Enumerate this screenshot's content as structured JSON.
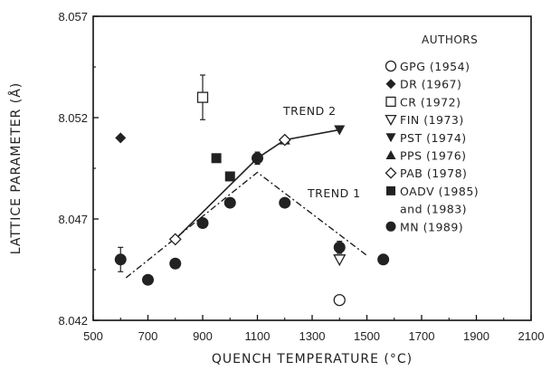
{
  "chart_data": {
    "type": "scatter",
    "xlabel": "QUENCH TEMPERATURE (°C)",
    "ylabel": "LATTICE PARAMETER (Å)",
    "xlim": [
      500,
      2100
    ],
    "ylim": [
      8.042,
      8.057
    ],
    "x_ticks": [
      500,
      700,
      900,
      1100,
      1300,
      1500,
      1700,
      1900,
      2100
    ],
    "y_ticks": [
      8.042,
      8.047,
      8.052,
      8.057
    ],
    "y_tick_labels": [
      "8.042",
      "8.047",
      "8.052",
      "8.057"
    ],
    "grid": false,
    "legend_title": "AUTHORS",
    "legend_position": "right",
    "series": [
      {
        "name": "GPG (1954)",
        "marker": "circle-open",
        "points": [
          {
            "x": 1400,
            "y": 8.043
          }
        ]
      },
      {
        "name": "DR (1967)",
        "marker": "diamond-filled",
        "points": [
          {
            "x": 600,
            "y": 8.051
          }
        ]
      },
      {
        "name": "CR (1972)",
        "marker": "square-open",
        "points": [
          {
            "x": 900,
            "y": 8.053,
            "err": 0.0011
          }
        ]
      },
      {
        "name": "FIN (1973)",
        "marker": "triangle-down-open",
        "points": [
          {
            "x": 1400,
            "y": 8.045
          }
        ]
      },
      {
        "name": "PST (1974)",
        "marker": "triangle-down-filled",
        "points": [
          {
            "x": 1400,
            "y": 8.0514
          }
        ]
      },
      {
        "name": "PPS (1976)",
        "marker": "triangle-up-filled",
        "points": [
          {
            "x": 1200,
            "y": 8.0509
          }
        ]
      },
      {
        "name": "PAB (1978)",
        "marker": "diamond-open",
        "points": [
          {
            "x": 800,
            "y": 8.046
          },
          {
            "x": 1200,
            "y": 8.0509
          }
        ]
      },
      {
        "name": "OADV (1985) and (1983)",
        "marker": "square-filled",
        "points": [
          {
            "x": 950,
            "y": 8.05
          },
          {
            "x": 1000,
            "y": 8.0491
          }
        ]
      },
      {
        "name": "MN (1989)",
        "marker": "circle-filled",
        "points": [
          {
            "x": 600,
            "y": 8.045,
            "err": 0.0006
          },
          {
            "x": 700,
            "y": 8.044
          },
          {
            "x": 800,
            "y": 8.0448
          },
          {
            "x": 900,
            "y": 8.0468
          },
          {
            "x": 1000,
            "y": 8.0478
          },
          {
            "x": 1100,
            "y": 8.05,
            "err": 0.0003
          },
          {
            "x": 1200,
            "y": 8.0478
          },
          {
            "x": 1400,
            "y": 8.0456,
            "err": 0.0003
          },
          {
            "x": 1560,
            "y": 8.045
          }
        ]
      }
    ],
    "trends": [
      {
        "name": "TREND 2",
        "style": "solid",
        "points": [
          [
            800,
            8.046
          ],
          [
            1100,
            8.05
          ],
          [
            1200,
            8.0509
          ],
          [
            1400,
            8.0514
          ]
        ]
      },
      {
        "name": "TREND 1",
        "style": "dash-dot",
        "points": [
          [
            620,
            8.0441
          ],
          [
            1100,
            8.0493
          ],
          [
            1500,
            8.0452
          ]
        ]
      }
    ],
    "legend": [
      {
        "label": "GPG (1954)",
        "marker": "circle-open"
      },
      {
        "label": "DR (1967)",
        "marker": "diamond-filled"
      },
      {
        "label": "CR (1972)",
        "marker": "square-open"
      },
      {
        "label": "FIN (1973)",
        "marker": "triangle-down-open"
      },
      {
        "label": "PST (1974)",
        "marker": "triangle-down-filled"
      },
      {
        "label": "PPS (1976)",
        "marker": "triangle-up-filled"
      },
      {
        "label": "PAB (1978)",
        "marker": "diamond-open"
      },
      {
        "label": "OADV (1985)",
        "marker": "square-filled"
      },
      {
        "label": "and (1983)",
        "marker": "none"
      },
      {
        "label": "MN (1989)",
        "marker": "circle-filled"
      }
    ]
  }
}
